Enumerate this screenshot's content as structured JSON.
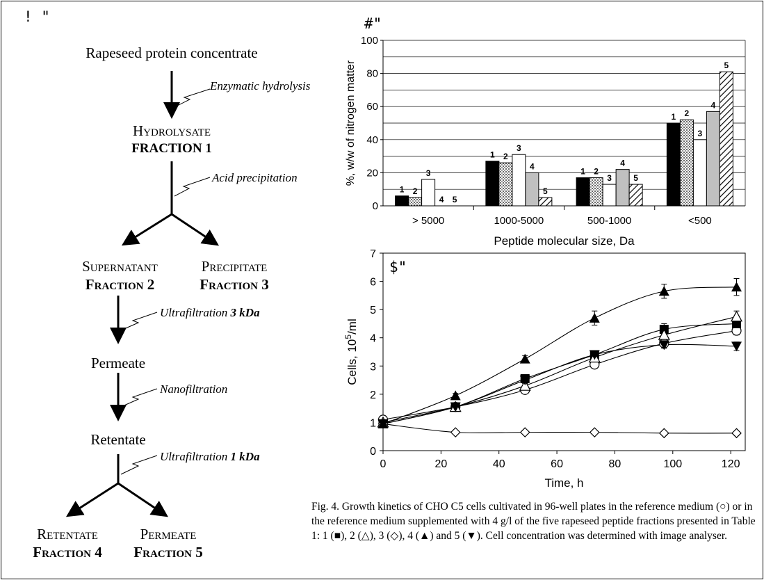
{
  "panels": {
    "a": "! \"",
    "b": "#\"",
    "c": "$\""
  },
  "flow": {
    "start": "Rapeseed protein concentrate",
    "step1": "Enzymatic hydrolysis",
    "hydrolysate": "Hydrolysate",
    "fraction1": "FRACTION 1",
    "step2": "Acid precipitation",
    "supernatant": "Supernatant",
    "fraction2": "Fraction 2",
    "precipitate": "Precipitate",
    "fraction3": "Fraction 3",
    "step3_text": "Ultrafiltration ",
    "step3_bold": "3 kDa",
    "permeate": "Permeate",
    "step4": "Nanofiltration",
    "retentate": "Retentate",
    "step5_text": "Ultrafiltration ",
    "step5_bold": "1 kDa",
    "retentate4": "Retentate",
    "fraction4": "Fraction 4",
    "permeate5": "Permeate",
    "fraction5": "Fraction 5"
  },
  "caption": "Fig. 4. Growth kinetics of CHO C5 cells cultivated in 96-well plates in the reference medium (○) or in the reference medium supplemented with 4 g/l of the five rapeseed peptide fractions presented in Table 1: 1 (■), 2 (△), 3 (◇), 4 (▲) and 5 (▼). Cell concentration was determined with image analyser.",
  "colors": {
    "ink": "#000000",
    "gray_bar": "#c0c0c0",
    "white_bar": "#ffffff"
  },
  "chart_data": [
    {
      "type": "bar",
      "ylabel": "%, w/w of nitrogen matter",
      "xlabel": "Peptide molecular size, Da",
      "ylim": [
        0,
        100
      ],
      "yticks": [
        0,
        20,
        40,
        60,
        80,
        100
      ],
      "grid": true,
      "categories": [
        "> 5000",
        "1000-5000",
        "500-1000",
        "<500"
      ],
      "series": [
        {
          "name": "1",
          "fill": "black",
          "values": [
            6,
            27,
            17,
            50
          ]
        },
        {
          "name": "2",
          "fill": "dotted",
          "values": [
            5,
            26,
            17,
            52
          ]
        },
        {
          "name": "3",
          "fill": "white",
          "values": [
            16,
            31,
            13,
            40
          ]
        },
        {
          "name": "4",
          "fill": "gray",
          "values": [
            0,
            20,
            22,
            57
          ]
        },
        {
          "name": "5",
          "fill": "hatched",
          "values": [
            0,
            5,
            13,
            81
          ]
        }
      ]
    },
    {
      "type": "line",
      "xlabel": "Time, h",
      "ylabel_main": "Cells, 10",
      "ylabel_sup": "5",
      "ylabel_tail": "/ml",
      "xlim": [
        0,
        125
      ],
      "ylim": [
        0,
        7
      ],
      "xticks": [
        0,
        20,
        40,
        60,
        80,
        100,
        120
      ],
      "yticks": [
        0,
        1,
        2,
        3,
        4,
        5,
        6,
        7
      ],
      "x": [
        0,
        25,
        49,
        73,
        97,
        122
      ],
      "series": [
        {
          "name": "reference",
          "marker": "circle-open",
          "values": [
            1.1,
            1.55,
            2.15,
            3.05,
            3.8,
            4.25
          ],
          "err": [
            0.05,
            0.1,
            0.12,
            0.12,
            0.15,
            0.15
          ]
        },
        {
          "name": "1",
          "marker": "square-filled",
          "values": [
            0.95,
            1.55,
            2.55,
            3.4,
            4.3,
            4.5
          ],
          "err": [
            0.05,
            0.1,
            0.12,
            0.12,
            0.2,
            0.2
          ]
        },
        {
          "name": "2",
          "marker": "triangle-open",
          "values": [
            1.0,
            1.55,
            2.3,
            3.3,
            4.1,
            4.75
          ],
          "err": [
            0.05,
            0.1,
            0.12,
            0.12,
            0.15,
            0.2
          ]
        },
        {
          "name": "3",
          "marker": "diamond-open",
          "values": [
            0.95,
            0.65,
            0.65,
            0.65,
            0.62,
            0.62
          ],
          "err": [
            0.03,
            0.03,
            0.03,
            0.03,
            0.03,
            0.03
          ]
        },
        {
          "name": "4",
          "marker": "triangle-filled",
          "values": [
            0.95,
            1.95,
            3.25,
            4.7,
            5.65,
            5.8
          ],
          "err": [
            0.05,
            0.08,
            0.12,
            0.25,
            0.25,
            0.3
          ]
        },
        {
          "name": "5",
          "marker": "triangle-down-filled",
          "values": [
            0.95,
            1.55,
            2.5,
            3.4,
            3.75,
            3.7
          ],
          "err": [
            0.05,
            0.1,
            0.12,
            0.12,
            0.12,
            0.15
          ]
        }
      ]
    }
  ]
}
